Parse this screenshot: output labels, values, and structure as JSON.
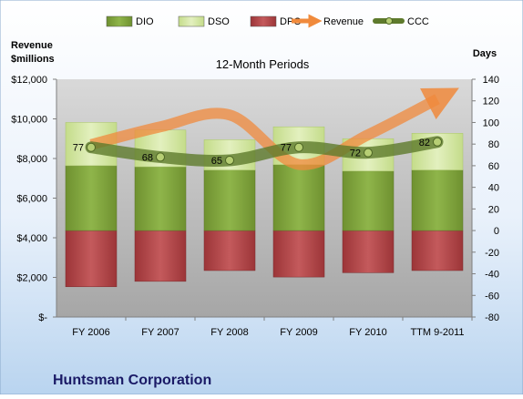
{
  "chart_data": {
    "type": "bar",
    "title": "12-Month Periods",
    "company": "Huntsman Corporation",
    "left_axis_label_line1": "Revenue",
    "left_axis_label_line2": "$millions",
    "right_axis_label": "Days",
    "categories": [
      "FY 2006",
      "FY 2007",
      "FY 2008",
      "FY 2009",
      "FY 2010",
      "TTM 9-2011"
    ],
    "left_axis": {
      "min": 0,
      "max": 12000,
      "ticks": [
        0,
        2000,
        4000,
        6000,
        8000,
        10000,
        12000
      ],
      "tick_labels": [
        "$-",
        "$2,000",
        "$4,000",
        "$6,000",
        "$8,000",
        "$10,000",
        "$12,000"
      ]
    },
    "right_axis": {
      "min": -80,
      "max": 140,
      "ticks": [
        -80,
        -60,
        -40,
        -20,
        0,
        20,
        40,
        60,
        80,
        100,
        120,
        140
      ],
      "tick_labels": [
        "-80",
        "-60",
        "-40",
        "-20",
        "0",
        "20",
        "40",
        "60",
        "80",
        "100",
        "120",
        "140"
      ]
    },
    "series": [
      {
        "name": "DIO",
        "axis": "right",
        "kind": "stacked-bar",
        "color": "#7a9a3a",
        "values": [
          60,
          59,
          56,
          61,
          55,
          56
        ]
      },
      {
        "name": "DSO",
        "axis": "right",
        "kind": "stacked-bar",
        "color": "#d3e6a3",
        "values": [
          40,
          34,
          28,
          35,
          30,
          34
        ]
      },
      {
        "name": "DPO",
        "axis": "right",
        "kind": "bar-negative",
        "color": "#b5474a",
        "values": [
          -52,
          -47,
          -37,
          -43,
          -39,
          -37
        ]
      },
      {
        "name": "Revenue",
        "axis": "left",
        "kind": "line-arrow",
        "color": "#f08a3c",
        "values": [
          8700,
          9600,
          10200,
          7700,
          9200,
          11000
        ]
      },
      {
        "name": "CCC",
        "axis": "right",
        "kind": "line",
        "color": "#5e7a2c",
        "values": [
          77,
          68,
          65,
          77,
          72,
          82
        ],
        "labels": [
          "77",
          "68",
          "65",
          "77",
          "72",
          "82"
        ]
      }
    ],
    "grid": false,
    "legend_position": "top"
  },
  "colors": {
    "background_top": "#ffffff",
    "background_bottom": "#b9d4ef",
    "plot_area": "#c0c0c0"
  }
}
